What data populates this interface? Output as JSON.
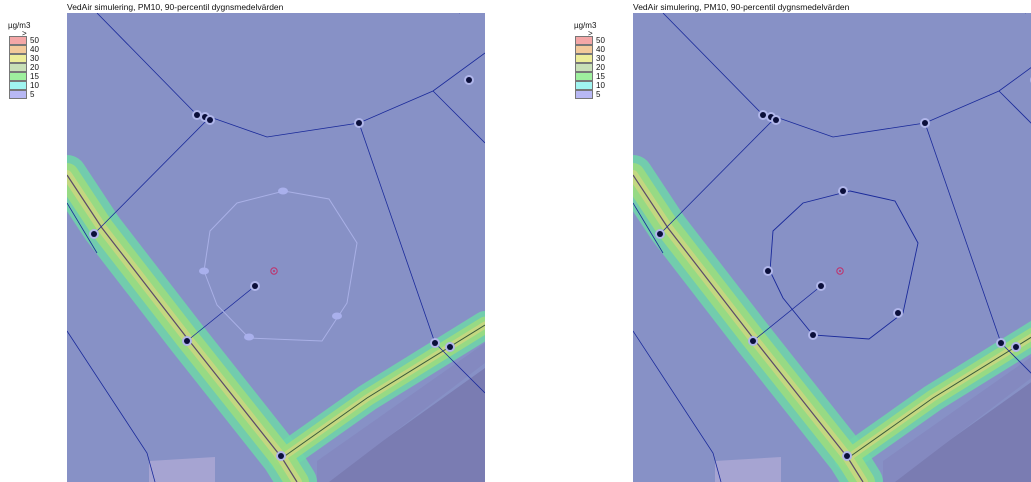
{
  "panels": [
    {
      "id": "left",
      "title": "VedAir simulering, PM10, 90-percentil dygnsmedelvärden",
      "active_ring": false
    },
    {
      "id": "right",
      "title": "VedAir simulering, PM10, 90-percentil dygnsmedelvärden",
      "active_ring": true
    }
  ],
  "legend": {
    "unit": "µg/m3",
    "top_marker": ">",
    "classes": [
      {
        "label": "50",
        "color": "#f4a7a7"
      },
      {
        "label": "40",
        "color": "#f3c99b"
      },
      {
        "label": "30",
        "color": "#eded9a"
      },
      {
        "label": "20",
        "color": "#c8e0b8"
      },
      {
        "label": "15",
        "color": "#9ef09e"
      },
      {
        "label": "10",
        "color": "#a0f4f0"
      },
      {
        "label": "5",
        "color": "#b8b8f4"
      }
    ]
  },
  "colors": {
    "background": "#8791c6",
    "road_outer": "#6ed6a8",
    "road_mid": "#9bdc80",
    "road_inner": "#c8d680",
    "node_fill": "#0b0f3a",
    "line": "#1a2a9a",
    "dark_block": "#7a7cb2",
    "light_block": "#a6a4d2",
    "source_marker": "#c0306a"
  }
}
